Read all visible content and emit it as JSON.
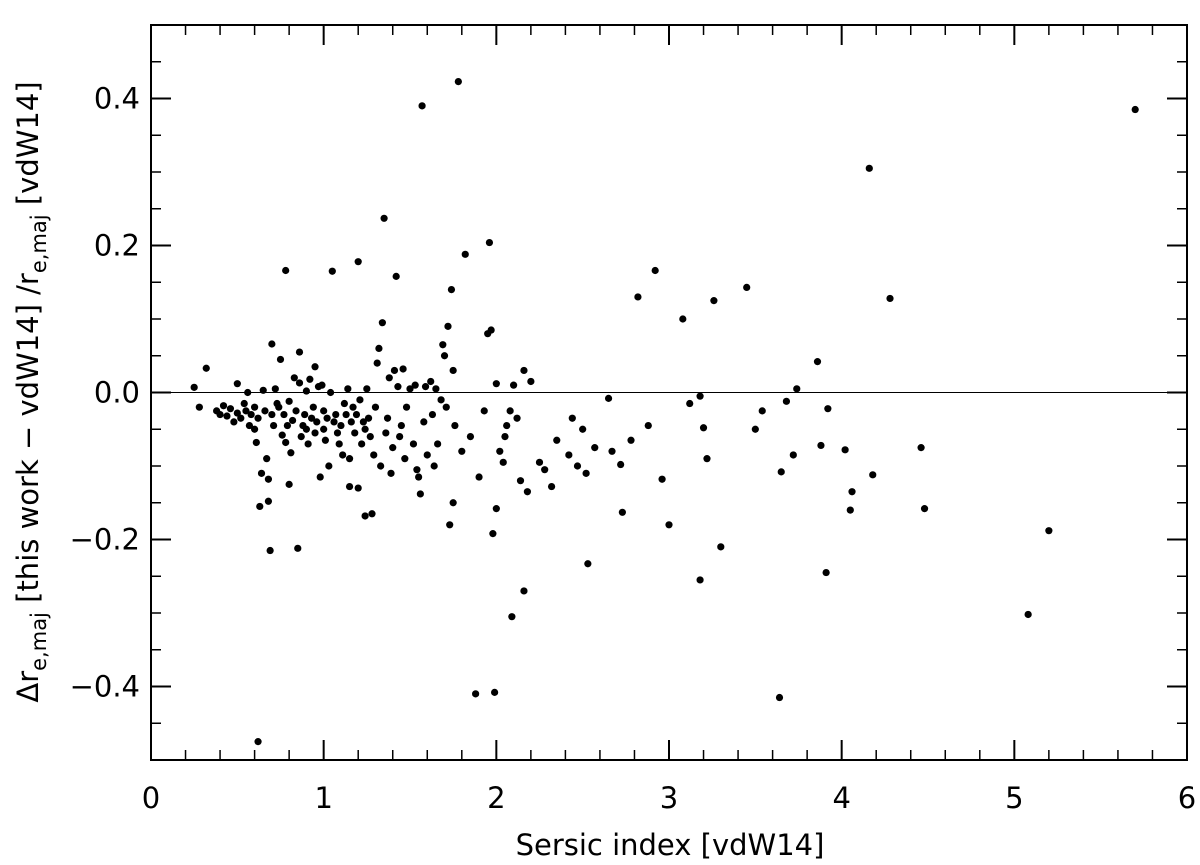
{
  "chart_data": {
    "type": "scatter",
    "xlabel": "Sersic index [vdW14]",
    "ylabel": "Δr_{e,maj} [this work − vdW14] /r_{e,maj} [vdW14]",
    "ylabel_parts": {
      "delta": "Δr",
      "sub1": "e,maj",
      "mid": " [this work − vdW14] /r",
      "sub2": "e,maj",
      "tail": " [vdW14]"
    },
    "xlim": [
      0,
      6
    ],
    "ylim": [
      -0.5,
      0.5
    ],
    "xticks": [
      0,
      1,
      2,
      3,
      4,
      5,
      6
    ],
    "xtick_labels": [
      "0",
      "1",
      "2",
      "3",
      "4",
      "5",
      "6"
    ],
    "yticks": [
      -0.4,
      -0.2,
      0.0,
      0.2,
      0.4
    ],
    "ytick_labels": [
      "−0.4",
      "−0.2",
      "0.0",
      "0.2",
      "0.4"
    ],
    "reference_line_y": 0.0,
    "grid": false,
    "points": [
      [
        0.25,
        0.007
      ],
      [
        0.28,
        -0.02
      ],
      [
        0.32,
        0.033
      ],
      [
        0.38,
        -0.025
      ],
      [
        0.4,
        -0.03
      ],
      [
        0.42,
        -0.018
      ],
      [
        0.44,
        -0.032
      ],
      [
        0.46,
        -0.022
      ],
      [
        0.48,
        -0.04
      ],
      [
        0.5,
        0.012
      ],
      [
        0.5,
        -0.028
      ],
      [
        0.52,
        -0.035
      ],
      [
        0.54,
        -0.015
      ],
      [
        0.55,
        -0.025
      ],
      [
        0.56,
        0.0
      ],
      [
        0.57,
        -0.045
      ],
      [
        0.58,
        -0.03
      ],
      [
        0.6,
        -0.02
      ],
      [
        0.6,
        -0.05
      ],
      [
        0.61,
        -0.068
      ],
      [
        0.62,
        -0.035
      ],
      [
        0.63,
        -0.155
      ],
      [
        0.64,
        -0.11
      ],
      [
        0.65,
        0.003
      ],
      [
        0.66,
        -0.025
      ],
      [
        0.67,
        -0.09
      ],
      [
        0.68,
        -0.148
      ],
      [
        0.68,
        -0.118
      ],
      [
        0.69,
        -0.215
      ],
      [
        0.7,
        0.066
      ],
      [
        0.7,
        -0.03
      ],
      [
        0.71,
        -0.045
      ],
      [
        0.72,
        0.005
      ],
      [
        0.73,
        -0.015
      ],
      [
        0.74,
        -0.02
      ],
      [
        0.75,
        0.045
      ],
      [
        0.76,
        -0.058
      ],
      [
        0.77,
        -0.03
      ],
      [
        0.78,
        0.166
      ],
      [
        0.78,
        -0.068
      ],
      [
        0.79,
        -0.045
      ],
      [
        0.8,
        -0.125
      ],
      [
        0.8,
        -0.012
      ],
      [
        0.81,
        -0.082
      ],
      [
        0.82,
        -0.038
      ],
      [
        0.83,
        0.02
      ],
      [
        0.84,
        -0.025
      ],
      [
        0.85,
        -0.212
      ],
      [
        0.86,
        0.055
      ],
      [
        0.86,
        0.013
      ],
      [
        0.87,
        -0.06
      ],
      [
        0.88,
        -0.045
      ],
      [
        0.89,
        -0.03
      ],
      [
        0.9,
        0.002
      ],
      [
        0.9,
        -0.05
      ],
      [
        0.91,
        -0.07
      ],
      [
        0.92,
        0.018
      ],
      [
        0.93,
        -0.035
      ],
      [
        0.94,
        -0.02
      ],
      [
        0.95,
        0.035
      ],
      [
        0.95,
        -0.055
      ],
      [
        0.96,
        -0.04
      ],
      [
        0.97,
        0.008
      ],
      [
        0.98,
        -0.115
      ],
      [
        0.99,
        0.01
      ],
      [
        1.0,
        -0.025
      ],
      [
        1.0,
        -0.05
      ],
      [
        1.01,
        -0.065
      ],
      [
        1.02,
        -0.035
      ],
      [
        1.03,
        -0.1
      ],
      [
        1.04,
        0.0
      ],
      [
        1.05,
        0.165
      ],
      [
        1.06,
        -0.04
      ],
      [
        1.07,
        -0.03
      ],
      [
        1.08,
        -0.055
      ],
      [
        1.09,
        -0.07
      ],
      [
        1.1,
        -0.045
      ],
      [
        1.11,
        -0.085
      ],
      [
        1.12,
        -0.015
      ],
      [
        1.13,
        -0.03
      ],
      [
        1.14,
        0.005
      ],
      [
        1.15,
        -0.09
      ],
      [
        1.15,
        -0.128
      ],
      [
        1.16,
        -0.04
      ],
      [
        1.17,
        -0.02
      ],
      [
        1.18,
        -0.055
      ],
      [
        1.19,
        -0.03
      ],
      [
        1.2,
        0.178
      ],
      [
        1.2,
        -0.13
      ],
      [
        1.21,
        -0.01
      ],
      [
        1.22,
        -0.07
      ],
      [
        1.23,
        -0.04
      ],
      [
        1.24,
        -0.168
      ],
      [
        1.24,
        -0.05
      ],
      [
        1.25,
        0.005
      ],
      [
        1.26,
        -0.035
      ],
      [
        1.27,
        -0.06
      ],
      [
        1.28,
        -0.165
      ],
      [
        1.29,
        -0.085
      ],
      [
        1.3,
        -0.02
      ],
      [
        1.31,
        0.04
      ],
      [
        1.32,
        0.06
      ],
      [
        1.33,
        -0.1
      ],
      [
        1.34,
        0.095
      ],
      [
        1.35,
        0.237
      ],
      [
        1.36,
        -0.055
      ],
      [
        1.37,
        -0.035
      ],
      [
        1.38,
        0.02
      ],
      [
        1.39,
        -0.11
      ],
      [
        1.4,
        -0.075
      ],
      [
        1.41,
        0.03
      ],
      [
        1.42,
        0.158
      ],
      [
        1.43,
        0.008
      ],
      [
        1.44,
        -0.06
      ],
      [
        1.45,
        -0.045
      ],
      [
        1.46,
        0.032
      ],
      [
        1.47,
        -0.09
      ],
      [
        1.48,
        -0.02
      ],
      [
        1.5,
        0.005
      ],
      [
        1.52,
        -0.07
      ],
      [
        1.53,
        0.01
      ],
      [
        1.54,
        -0.105
      ],
      [
        1.55,
        -0.115
      ],
      [
        1.56,
        -0.138
      ],
      [
        1.57,
        0.39
      ],
      [
        1.58,
        -0.04
      ],
      [
        1.59,
        0.008
      ],
      [
        1.6,
        -0.085
      ],
      [
        1.62,
        0.015
      ],
      [
        1.63,
        -0.03
      ],
      [
        1.64,
        -0.1
      ],
      [
        1.65,
        0.005
      ],
      [
        1.66,
        -0.07
      ],
      [
        1.68,
        -0.01
      ],
      [
        1.69,
        0.065
      ],
      [
        1.7,
        0.05
      ],
      [
        1.71,
        -0.02
      ],
      [
        1.72,
        0.09
      ],
      [
        1.73,
        -0.18
      ],
      [
        1.74,
        0.14
      ],
      [
        1.75,
        0.03
      ],
      [
        1.75,
        -0.15
      ],
      [
        1.76,
        -0.045
      ],
      [
        1.78,
        0.423
      ],
      [
        1.8,
        -0.08
      ],
      [
        1.82,
        0.188
      ],
      [
        1.85,
        -0.06
      ],
      [
        1.88,
        -0.41
      ],
      [
        1.9,
        -0.115
      ],
      [
        1.93,
        -0.025
      ],
      [
        1.95,
        0.08
      ],
      [
        1.96,
        0.204
      ],
      [
        1.97,
        0.085
      ],
      [
        1.98,
        -0.192
      ],
      [
        1.99,
        -0.408
      ],
      [
        2.0,
        -0.158
      ],
      [
        2.0,
        0.012
      ],
      [
        2.02,
        -0.08
      ],
      [
        2.04,
        -0.095
      ],
      [
        2.05,
        -0.06
      ],
      [
        2.06,
        -0.045
      ],
      [
        2.08,
        -0.025
      ],
      [
        2.09,
        -0.305
      ],
      [
        2.1,
        0.01
      ],
      [
        2.12,
        -0.035
      ],
      [
        2.14,
        -0.12
      ],
      [
        2.16,
        0.03
      ],
      [
        2.16,
        -0.27
      ],
      [
        2.18,
        -0.135
      ],
      [
        2.2,
        0.015
      ],
      [
        2.25,
        -0.095
      ],
      [
        2.28,
        -0.105
      ],
      [
        2.32,
        -0.128
      ],
      [
        2.35,
        -0.065
      ],
      [
        2.42,
        -0.085
      ],
      [
        2.44,
        -0.035
      ],
      [
        2.47,
        -0.1
      ],
      [
        2.5,
        -0.05
      ],
      [
        2.52,
        -0.11
      ],
      [
        2.53,
        -0.233
      ],
      [
        2.57,
        -0.075
      ],
      [
        2.65,
        -0.008
      ],
      [
        2.67,
        -0.08
      ],
      [
        2.72,
        -0.098
      ],
      [
        2.73,
        -0.163
      ],
      [
        2.78,
        -0.065
      ],
      [
        2.82,
        0.13
      ],
      [
        2.88,
        -0.045
      ],
      [
        2.92,
        0.166
      ],
      [
        2.96,
        -0.118
      ],
      [
        3.0,
        -0.18
      ],
      [
        3.08,
        0.1
      ],
      [
        3.12,
        -0.015
      ],
      [
        3.18,
        -0.005
      ],
      [
        3.18,
        -0.255
      ],
      [
        3.2,
        -0.048
      ],
      [
        3.22,
        -0.09
      ],
      [
        3.26,
        0.125
      ],
      [
        3.3,
        -0.21
      ],
      [
        3.45,
        0.143
      ],
      [
        3.5,
        -0.05
      ],
      [
        3.54,
        -0.025
      ],
      [
        3.64,
        -0.415
      ],
      [
        3.65,
        -0.108
      ],
      [
        3.68,
        -0.012
      ],
      [
        3.72,
        -0.085
      ],
      [
        3.74,
        0.005
      ],
      [
        3.86,
        0.042
      ],
      [
        3.88,
        -0.072
      ],
      [
        3.91,
        -0.245
      ],
      [
        3.92,
        -0.022
      ],
      [
        4.02,
        -0.078
      ],
      [
        4.05,
        -0.16
      ],
      [
        4.06,
        -0.135
      ],
      [
        4.16,
        0.305
      ],
      [
        4.18,
        -0.112
      ],
      [
        4.28,
        0.128
      ],
      [
        4.46,
        -0.075
      ],
      [
        4.48,
        -0.158
      ],
      [
        5.08,
        -0.302
      ],
      [
        5.2,
        -0.188
      ],
      [
        5.7,
        0.385
      ],
      [
        0.62,
        -0.475
      ]
    ]
  }
}
